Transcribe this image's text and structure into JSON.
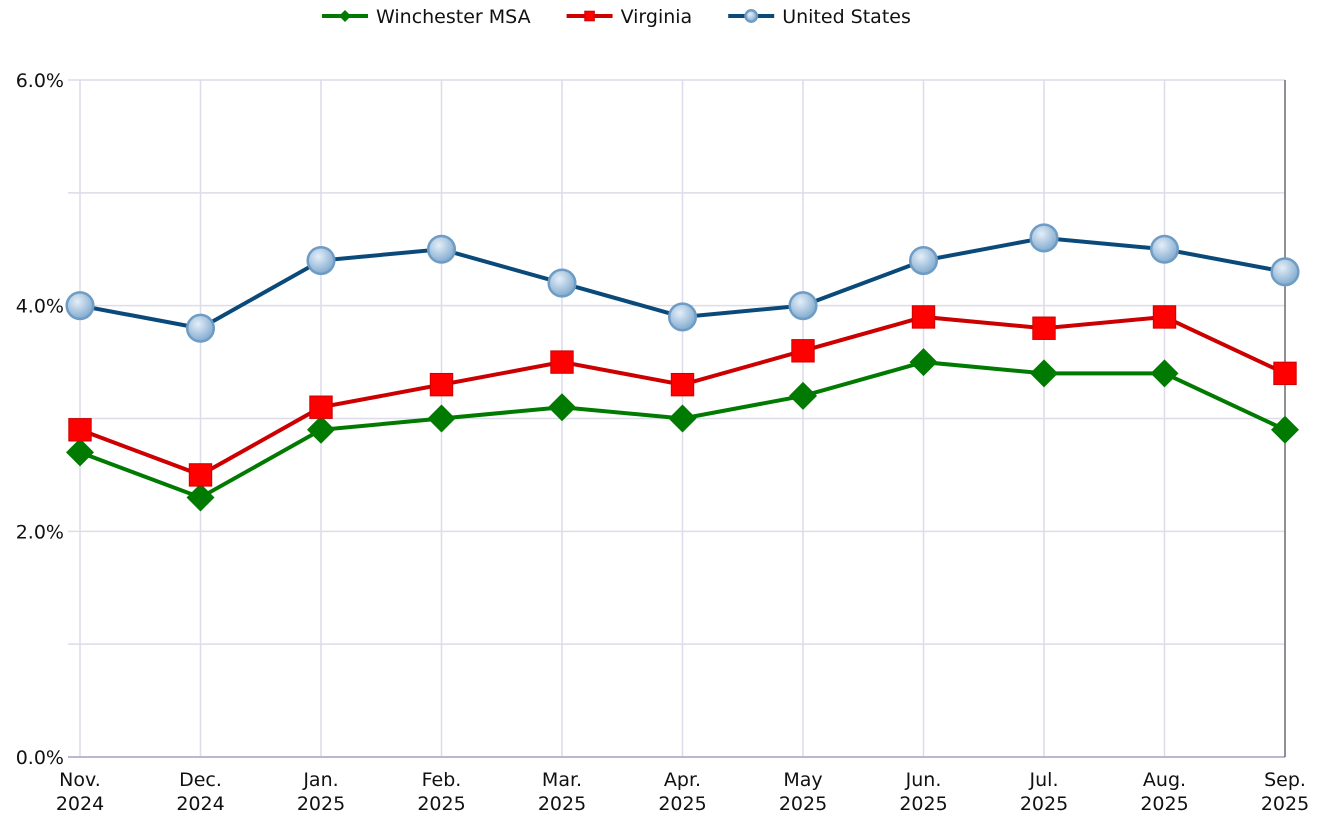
{
  "chart_data": {
    "type": "line",
    "categories": [
      "Nov. 2024",
      "Dec. 2024",
      "Jan. 2025",
      "Feb. 2025",
      "Mar. 2025",
      "Apr. 2025",
      "May 2025",
      "Jun. 2025",
      "Jul. 2025",
      "Aug. 2025",
      "Sep. 2025"
    ],
    "series": [
      {
        "name": "Winchester MSA",
        "color": "#007a00",
        "marker": "diamond",
        "values": [
          2.7,
          2.3,
          2.9,
          3.0,
          3.1,
          3.0,
          3.2,
          3.5,
          3.4,
          3.4,
          2.9
        ]
      },
      {
        "name": "Virginia",
        "color": "#cc0000",
        "marker": "square",
        "values": [
          2.9,
          2.5,
          3.1,
          3.3,
          3.5,
          3.3,
          3.6,
          3.9,
          3.8,
          3.9,
          3.4
        ]
      },
      {
        "name": "United States",
        "color": "#0a4a7a",
        "marker": "circle",
        "values": [
          4.0,
          3.8,
          4.4,
          4.5,
          4.2,
          3.9,
          4.0,
          4.4,
          4.6,
          4.5,
          4.3
        ]
      }
    ],
    "ylim": [
      0,
      6
    ],
    "yticks": [
      {
        "value": 0,
        "label": "0.0%"
      },
      {
        "value": 2,
        "label": "2.0%"
      },
      {
        "value": 4,
        "label": "4.0%"
      },
      {
        "value": 6,
        "label": "6.0%"
      }
    ],
    "ygrid_minor": [
      1,
      3,
      5
    ],
    "grid": true,
    "legend": "top"
  }
}
